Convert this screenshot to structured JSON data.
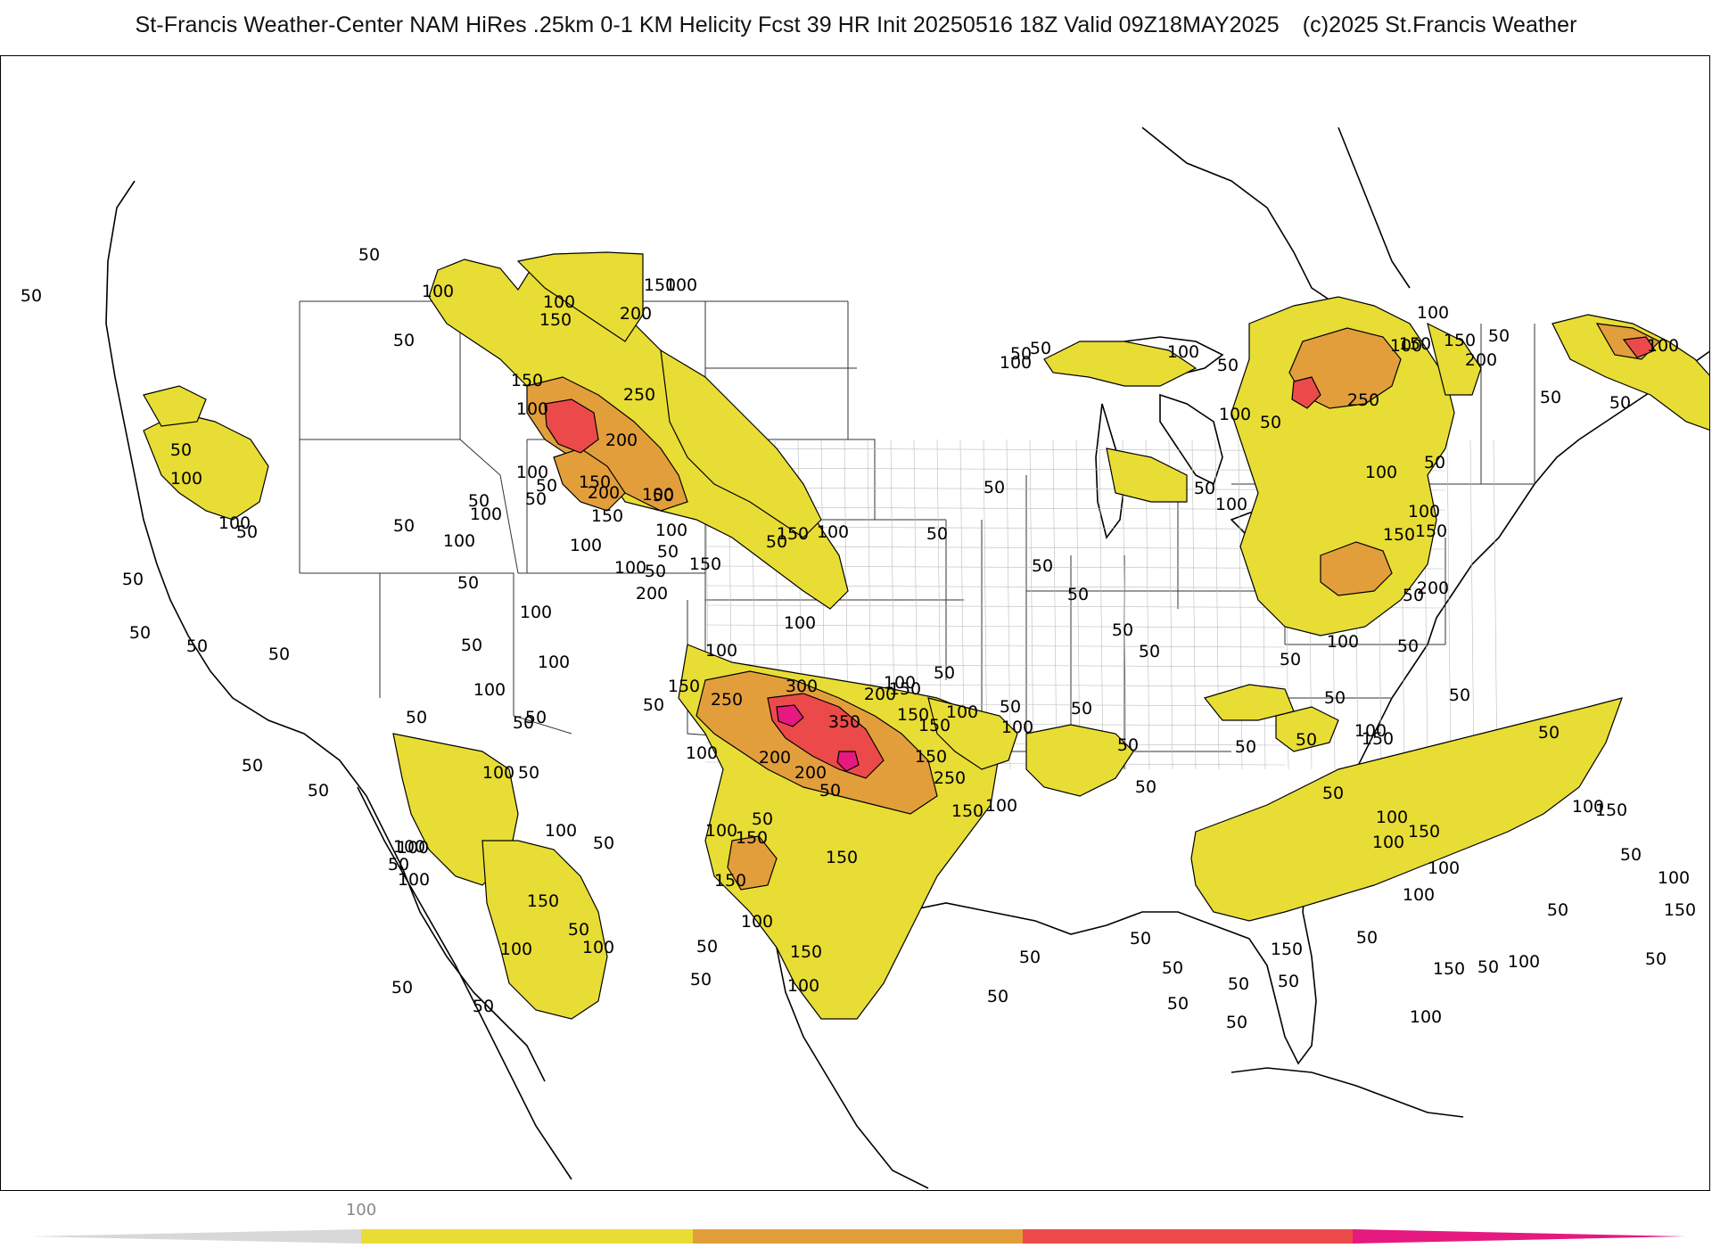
{
  "header": {
    "title": "St-Francis Weather-Center NAM HiRes .25km 0-1 KM Helicity Fcst 39 HR Init 20250516 18Z  Valid 09Z18MAY2025",
    "copyright": "(c)2025 St.Francis Weather"
  },
  "map": {
    "field": "0-1 KM Helicity",
    "region": "CONUS",
    "basemap": "state-and-county-boundaries",
    "contour_interval": 50,
    "contour_labels": [
      "50",
      "100",
      "150",
      "200",
      "250",
      "300",
      "350"
    ],
    "shading": {
      "levels": [
        100,
        200,
        300,
        400
      ],
      "colors": [
        "#e8dd35",
        "#e39e3c",
        "#ec4a4a",
        "#e5197f"
      ],
      "line_color": "#000000"
    }
  },
  "legend": {
    "tick_label": "100",
    "colors": [
      "#e8dd35",
      "#e39e3c",
      "#ec4a4a",
      "#e5197f"
    ]
  }
}
